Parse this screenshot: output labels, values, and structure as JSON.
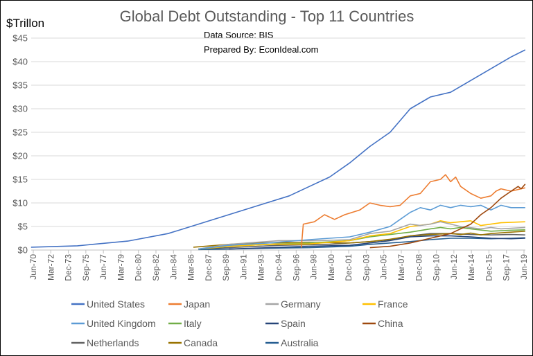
{
  "chart_data": {
    "type": "line",
    "title": "Global Debt Outstanding - Top 11 Countries",
    "source_text": "Data Source: BIS",
    "prepared_text": "Prepared By: EconIdeal.com",
    "ylabel": "$Trillon",
    "xlabel": "",
    "ylim": [
      0,
      45
    ],
    "y_ticks": [
      0,
      5,
      10,
      15,
      20,
      25,
      30,
      35,
      40,
      45
    ],
    "y_tick_labels": [
      "$0",
      "$5",
      "$10",
      "$15",
      "$20",
      "$25",
      "$30",
      "$35",
      "$40",
      "$45"
    ],
    "x_range": [
      1970.417,
      2019.417
    ],
    "x_tick_labels": [
      "Jun-70",
      "Mar-72",
      "Dec-73",
      "Sep-75",
      "Jun-77",
      "Mar-79",
      "Dec-80",
      "Sep-82",
      "Jun-84",
      "Mar-86",
      "Dec-87",
      "Sep-89",
      "Jun-91",
      "Mar-93",
      "Dec-94",
      "Sep-96",
      "Jun-98",
      "Mar-00",
      "Dec-01",
      "Sep-03",
      "Jun-05",
      "Mar-07",
      "Dec-08",
      "Sep-10",
      "Jun-12",
      "Mar-14",
      "Dec-15",
      "Sep-17",
      "Jun-19"
    ],
    "grid": true,
    "legend_position": "bottom",
    "series": [
      {
        "name": "United States",
        "color": "#4472c4",
        "points": [
          [
            1970.4,
            0.6
          ],
          [
            1975,
            0.9
          ],
          [
            1980,
            1.9
          ],
          [
            1984,
            3.5
          ],
          [
            1987,
            5.5
          ],
          [
            1990,
            7.5
          ],
          [
            1993,
            9.5
          ],
          [
            1996,
            11.5
          ],
          [
            1998,
            13.5
          ],
          [
            2000,
            15.5
          ],
          [
            2002,
            18.5
          ],
          [
            2004,
            22
          ],
          [
            2006,
            25
          ],
          [
            2008,
            30
          ],
          [
            2010,
            32.5
          ],
          [
            2012,
            33.5
          ],
          [
            2014,
            36
          ],
          [
            2016,
            38.5
          ],
          [
            2018,
            41
          ],
          [
            2019.4,
            42.5
          ]
        ]
      },
      {
        "name": "Japan",
        "color": "#ed7d31",
        "points": [
          [
            1997.2,
            0.5
          ],
          [
            1997.4,
            5.5
          ],
          [
            1998.5,
            6
          ],
          [
            1999.5,
            7.5
          ],
          [
            2000.5,
            6.5
          ],
          [
            2001.5,
            7.5
          ],
          [
            2003,
            8.5
          ],
          [
            2004,
            10
          ],
          [
            2005,
            9.5
          ],
          [
            2006,
            9.2
          ],
          [
            2007,
            9.5
          ],
          [
            2008,
            11.5
          ],
          [
            2009,
            12
          ],
          [
            2010,
            14.5
          ],
          [
            2011,
            15
          ],
          [
            2011.5,
            16
          ],
          [
            2012,
            14.5
          ],
          [
            2012.5,
            15.5
          ],
          [
            2013,
            13.5
          ],
          [
            2014,
            12
          ],
          [
            2015,
            11
          ],
          [
            2016,
            11.5
          ],
          [
            2016.5,
            12.5
          ],
          [
            2017,
            13
          ],
          [
            2018,
            12.5
          ],
          [
            2019.4,
            13.2
          ]
        ]
      },
      {
        "name": "Germany",
        "color": "#a5a5a5",
        "points": [
          [
            1987,
            0.2
          ],
          [
            1990,
            1.2
          ],
          [
            1995,
            2
          ],
          [
            1999,
            2
          ],
          [
            2002,
            2.2
          ],
          [
            2004,
            3.5
          ],
          [
            2006,
            4
          ],
          [
            2008,
            5.5
          ],
          [
            2009,
            5.2
          ],
          [
            2010,
            5.5
          ],
          [
            2011,
            6
          ],
          [
            2012,
            5.5
          ],
          [
            2013,
            5
          ],
          [
            2015,
            4.5
          ],
          [
            2016,
            4.8
          ],
          [
            2017,
            4.5
          ],
          [
            2019.4,
            4.8
          ]
        ]
      },
      {
        "name": "France",
        "color": "#ffc000",
        "points": [
          [
            1987,
            0.2
          ],
          [
            1990,
            0.8
          ],
          [
            1994,
            1.2
          ],
          [
            1998,
            1.3
          ],
          [
            2002,
            2
          ],
          [
            2004,
            3
          ],
          [
            2006,
            3.5
          ],
          [
            2008,
            5
          ],
          [
            2010,
            5.5
          ],
          [
            2011,
            6.2
          ],
          [
            2012,
            5.8
          ],
          [
            2013,
            6
          ],
          [
            2014,
            6.2
          ],
          [
            2015,
            5.2
          ],
          [
            2016,
            5.5
          ],
          [
            2017,
            5.8
          ],
          [
            2019.4,
            6
          ]
        ]
      },
      {
        "name": "United Kingdom",
        "color": "#5b9bd5",
        "points": [
          [
            1987,
            0.2
          ],
          [
            1990,
            1
          ],
          [
            1994,
            1.5
          ],
          [
            1998,
            2.2
          ],
          [
            2002,
            2.8
          ],
          [
            2004,
            3.8
          ],
          [
            2006,
            5
          ],
          [
            2007,
            6.5
          ],
          [
            2008,
            8
          ],
          [
            2009,
            9
          ],
          [
            2010,
            8.5
          ],
          [
            2011,
            9.5
          ],
          [
            2012,
            9
          ],
          [
            2013,
            9.5
          ],
          [
            2014,
            9.2
          ],
          [
            2015,
            9.5
          ],
          [
            2016,
            8.5
          ],
          [
            2017,
            9.5
          ],
          [
            2018,
            9
          ],
          [
            2019.4,
            9
          ]
        ]
      },
      {
        "name": "Italy",
        "color": "#70ad47",
        "points": [
          [
            1987,
            0.2
          ],
          [
            1990,
            0.8
          ],
          [
            1994,
            1.2
          ],
          [
            1998,
            1.5
          ],
          [
            2002,
            2
          ],
          [
            2004,
            2.8
          ],
          [
            2006,
            3.3
          ],
          [
            2008,
            3.8
          ],
          [
            2010,
            4.5
          ],
          [
            2011,
            4.8
          ],
          [
            2012,
            4.5
          ],
          [
            2013,
            4.8
          ],
          [
            2014,
            4.5
          ],
          [
            2016,
            4
          ],
          [
            2018,
            4.2
          ],
          [
            2019.4,
            4.3
          ]
        ]
      },
      {
        "name": "Spain",
        "color": "#264478",
        "points": [
          [
            1990,
            0.2
          ],
          [
            1994,
            0.5
          ],
          [
            1998,
            0.8
          ],
          [
            2002,
            1
          ],
          [
            2004,
            1.5
          ],
          [
            2006,
            2
          ],
          [
            2008,
            2.8
          ],
          [
            2010,
            3
          ],
          [
            2012,
            3
          ],
          [
            2014,
            2.8
          ],
          [
            2016,
            2.5
          ],
          [
            2018,
            2.4
          ],
          [
            2019.4,
            2.5
          ]
        ]
      },
      {
        "name": "China",
        "color": "#9e480e",
        "points": [
          [
            2004,
            0.5
          ],
          [
            2006,
            0.8
          ],
          [
            2008,
            1.5
          ],
          [
            2010,
            2.5
          ],
          [
            2012,
            3.5
          ],
          [
            2013,
            4.5
          ],
          [
            2014,
            5.5
          ],
          [
            2015,
            7.5
          ],
          [
            2016,
            9
          ],
          [
            2017,
            11
          ],
          [
            2018,
            12.5
          ],
          [
            2018.7,
            13.5
          ],
          [
            2019,
            13
          ],
          [
            2019.4,
            14
          ]
        ]
      },
      {
        "name": "Netherlands",
        "color": "#636363",
        "points": [
          [
            1987,
            0.2
          ],
          [
            1990,
            0.5
          ],
          [
            1995,
            1
          ],
          [
            2000,
            1.2
          ],
          [
            2004,
            1.8
          ],
          [
            2006,
            2.2
          ],
          [
            2008,
            3
          ],
          [
            2010,
            3.5
          ],
          [
            2012,
            3.5
          ],
          [
            2014,
            3.3
          ],
          [
            2016,
            3.2
          ],
          [
            2018,
            3.3
          ],
          [
            2019.4,
            3.2
          ]
        ]
      },
      {
        "name": "Canada",
        "color": "#997300",
        "points": [
          [
            1986.5,
            0.6
          ],
          [
            1990,
            1.2
          ],
          [
            1993,
            1.5
          ],
          [
            1998,
            1.6
          ],
          [
            2002,
            1.5
          ],
          [
            2004,
            1.8
          ],
          [
            2006,
            2.3
          ],
          [
            2008,
            3
          ],
          [
            2010,
            3.3
          ],
          [
            2012,
            3.5
          ],
          [
            2013,
            3.3
          ],
          [
            2014,
            3.6
          ],
          [
            2015,
            3.2
          ],
          [
            2016,
            3.5
          ],
          [
            2018,
            3.8
          ],
          [
            2019.4,
            4
          ]
        ]
      },
      {
        "name": "Australia",
        "color": "#255e91",
        "points": [
          [
            1987,
            0.1
          ],
          [
            1990,
            0.2
          ],
          [
            1994,
            0.4
          ],
          [
            1998,
            0.5
          ],
          [
            2002,
            0.8
          ],
          [
            2004,
            1.2
          ],
          [
            2006,
            1.5
          ],
          [
            2008,
            1.8
          ],
          [
            2010,
            2.2
          ],
          [
            2012,
            2.5
          ],
          [
            2014,
            2.5
          ],
          [
            2016,
            2.4
          ],
          [
            2018,
            2.5
          ],
          [
            2019.4,
            2.6
          ]
        ]
      }
    ]
  }
}
